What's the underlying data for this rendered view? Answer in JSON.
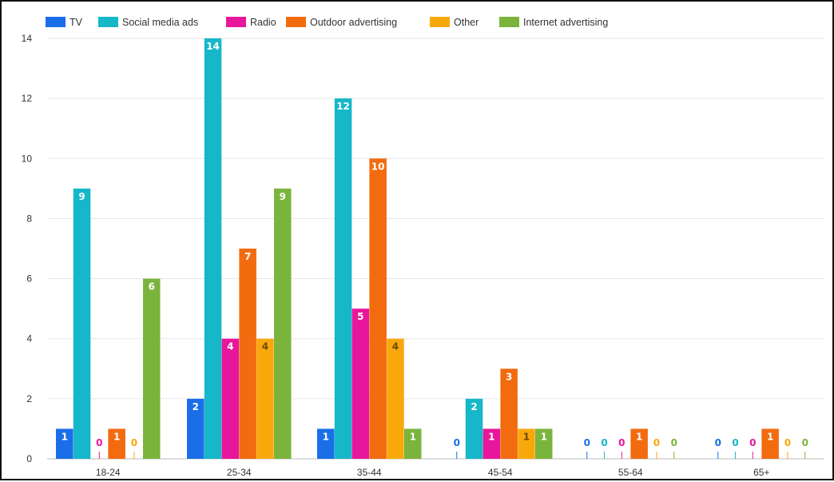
{
  "chart_data": {
    "type": "bar",
    "title": "",
    "xlabel": "",
    "ylabel": "",
    "categories": [
      "18-24",
      "25-34",
      "35-44",
      "45-54",
      "55-64",
      "65+"
    ],
    "series": [
      {
        "name": "TV",
        "color": "#1a6fe8",
        "values": [
          1,
          2,
          1,
          0,
          0,
          0
        ]
      },
      {
        "name": "Social media ads",
        "color": "#15b7c8",
        "values": [
          9,
          14,
          12,
          2,
          0,
          0
        ]
      },
      {
        "name": "Radio",
        "color": "#e8169b",
        "values": [
          0,
          4,
          5,
          1,
          0,
          0
        ]
      },
      {
        "name": "Outdoor advertising",
        "color": "#f26b0f",
        "values": [
          1,
          7,
          10,
          3,
          1,
          1
        ]
      },
      {
        "name": "Other",
        "color": "#f9a80c",
        "values": [
          0,
          4,
          4,
          1,
          0,
          0
        ]
      },
      {
        "name": "Internet advertising",
        "color": "#7ab43c",
        "values": [
          6,
          9,
          1,
          1,
          0,
          0
        ]
      }
    ],
    "ylim": [
      0,
      14
    ],
    "yticks": [
      0,
      2,
      4,
      6,
      8,
      10,
      12,
      14
    ],
    "grid": true,
    "legend": "top-left",
    "data_labels": true
  }
}
